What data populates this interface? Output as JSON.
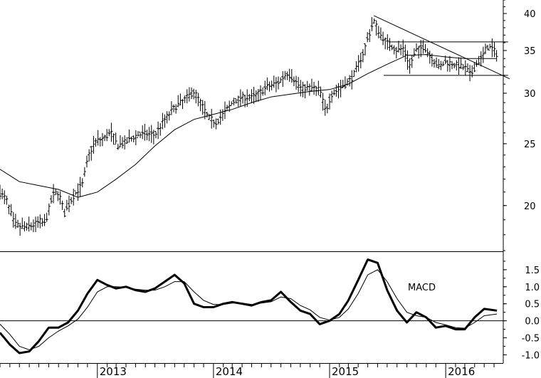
{
  "chart_data": [
    {
      "type": "ohlc",
      "title": "",
      "y_scale": "log",
      "ylim": [
        17,
        42
      ],
      "y_ticks": [
        {
          "value": 20,
          "label": "20"
        },
        {
          "value": 25,
          "label": "25"
        },
        {
          "value": 30,
          "label": "30"
        },
        {
          "value": 35,
          "label": "35"
        },
        {
          "value": 40,
          "label": "40"
        }
      ],
      "x_axis": {
        "start": "2012-03-01",
        "end": "2016-06-30",
        "year_labels": [
          {
            "date": "2013-01-01",
            "label": "2013"
          },
          {
            "date": "2014-01-01",
            "label": "2014"
          },
          {
            "date": "2015-01-01",
            "label": "2015"
          },
          {
            "date": "2016-01-01",
            "label": "2016"
          }
        ]
      },
      "price_path": [
        [
          "2012-03-01",
          20.9
        ],
        [
          "2012-03-20",
          20.5
        ],
        [
          "2012-04-15",
          18.7
        ],
        [
          "2012-05-10",
          18.5
        ],
        [
          "2012-06-10",
          18.6
        ],
        [
          "2012-07-05",
          18.9
        ],
        [
          "2012-07-20",
          18.7
        ],
        [
          "2012-08-15",
          20.8
        ],
        [
          "2012-09-01",
          21.0
        ],
        [
          "2012-09-20",
          19.4
        ],
        [
          "2012-10-15",
          20.6
        ],
        [
          "2012-11-15",
          21.6
        ],
        [
          "2012-12-05",
          24.0
        ],
        [
          "2012-12-25",
          25.2
        ],
        [
          "2013-01-20",
          25.5
        ],
        [
          "2013-02-15",
          26.0
        ],
        [
          "2013-03-05",
          24.8
        ],
        [
          "2013-04-05",
          25.2
        ],
        [
          "2013-05-05",
          25.8
        ],
        [
          "2013-06-01",
          25.9
        ],
        [
          "2013-07-01",
          25.8
        ],
        [
          "2013-08-01",
          27.3
        ],
        [
          "2013-09-01",
          28.5
        ],
        [
          "2013-10-01",
          29.3
        ],
        [
          "2013-11-01",
          30.2
        ],
        [
          "2013-11-25",
          28.8
        ],
        [
          "2013-12-15",
          27.5
        ],
        [
          "2014-01-10",
          27.0
        ],
        [
          "2014-02-05",
          28.0
        ],
        [
          "2014-03-01",
          29.0
        ],
        [
          "2014-04-01",
          29.6
        ],
        [
          "2014-05-01",
          29.5
        ],
        [
          "2014-06-01",
          30.2
        ],
        [
          "2014-06-25",
          30.8
        ],
        [
          "2014-07-25",
          31.2
        ],
        [
          "2014-08-20",
          32.3
        ],
        [
          "2014-09-10",
          31.6
        ],
        [
          "2014-10-01",
          30.6
        ],
        [
          "2014-11-01",
          30.6
        ],
        [
          "2014-12-01",
          30.4
        ],
        [
          "2014-12-20",
          28.0
        ],
        [
          "2015-01-05",
          29.8
        ],
        [
          "2015-02-01",
          30.5
        ],
        [
          "2015-02-20",
          31.0
        ],
        [
          "2015-03-15",
          31.8
        ],
        [
          "2015-04-15",
          34.5
        ],
        [
          "2015-05-05",
          37.0
        ],
        [
          "2015-05-20",
          39.0
        ],
        [
          "2015-06-10",
          37.0
        ],
        [
          "2015-07-01",
          36.0
        ],
        [
          "2015-08-01",
          35.0
        ],
        [
          "2015-08-20",
          35.3
        ],
        [
          "2015-09-10",
          33.2
        ],
        [
          "2015-10-01",
          35.0
        ],
        [
          "2015-10-25",
          35.5
        ],
        [
          "2015-11-10",
          34.5
        ],
        [
          "2015-12-10",
          33.0
        ],
        [
          "2016-01-05",
          33.6
        ],
        [
          "2016-02-05",
          33.2
        ],
        [
          "2016-03-05",
          32.8
        ],
        [
          "2016-03-20",
          32.0
        ],
        [
          "2016-04-05",
          33.2
        ],
        [
          "2016-04-25",
          34.2
        ],
        [
          "2016-05-10",
          35.5
        ],
        [
          "2016-05-25",
          35.3
        ],
        [
          "2016-06-10",
          34.5
        ]
      ],
      "moving_average": [
        [
          "2012-03-01",
          22.8
        ],
        [
          "2012-05-01",
          21.8
        ],
        [
          "2012-07-01",
          21.5
        ],
        [
          "2012-09-01",
          21.2
        ],
        [
          "2012-11-01",
          20.6
        ],
        [
          "2013-01-01",
          21.0
        ],
        [
          "2013-03-01",
          22.0
        ],
        [
          "2013-05-01",
          23.2
        ],
        [
          "2013-07-01",
          24.8
        ],
        [
          "2013-09-01",
          26.3
        ],
        [
          "2013-11-01",
          27.3
        ],
        [
          "2014-01-01",
          27.8
        ],
        [
          "2014-03-01",
          28.3
        ],
        [
          "2014-05-01",
          29.0
        ],
        [
          "2014-07-01",
          29.6
        ],
        [
          "2014-09-01",
          29.9
        ],
        [
          "2014-11-01",
          30.2
        ],
        [
          "2015-01-01",
          30.4
        ],
        [
          "2015-03-01",
          31.0
        ],
        [
          "2015-05-01",
          32.2
        ],
        [
          "2015-07-01",
          33.3
        ],
        [
          "2015-09-01",
          34.4
        ],
        [
          "2015-11-01",
          34.5
        ],
        [
          "2016-01-01",
          34.2
        ],
        [
          "2016-03-01",
          34.0
        ],
        [
          "2016-05-01",
          34.0
        ],
        [
          "2016-06-10",
          34.0
        ]
      ],
      "trendlines": [
        {
          "from": [
            "2015-05-20",
            39.7
          ],
          "to": [
            "2016-07-20",
            31.6
          ]
        },
        {
          "from": [
            "2015-07-05",
            36.1
          ],
          "to": [
            "2016-07-15",
            36.1
          ]
        },
        {
          "from": [
            "2015-06-20",
            32.0
          ],
          "to": [
            "2016-07-15",
            32.0
          ]
        }
      ]
    },
    {
      "type": "line",
      "title": "MACD",
      "ylim": [
        -1.2,
        2.0
      ],
      "y_ticks": [
        {
          "value": 1.5,
          "label": "1.5"
        },
        {
          "value": 1.0,
          "label": "1.0"
        },
        {
          "value": 0.5,
          "label": "0.5"
        },
        {
          "value": 0.0,
          "label": "0.0"
        },
        {
          "value": -0.5,
          "label": "-0.5"
        },
        {
          "value": -1.0,
          "label": "-1.0"
        }
      ],
      "zero_line": 0,
      "series": [
        {
          "role": "macd",
          "points": [
            [
              "2012-03-01",
              -0.35
            ],
            [
              "2012-04-01",
              -0.7
            ],
            [
              "2012-05-01",
              -0.95
            ],
            [
              "2012-06-01",
              -0.9
            ],
            [
              "2012-07-01",
              -0.6
            ],
            [
              "2012-08-01",
              -0.2
            ],
            [
              "2012-09-01",
              -0.2
            ],
            [
              "2012-10-01",
              -0.05
            ],
            [
              "2012-11-01",
              0.3
            ],
            [
              "2012-12-01",
              0.8
            ],
            [
              "2013-01-01",
              1.2
            ],
            [
              "2013-02-01",
              1.05
            ],
            [
              "2013-03-01",
              0.95
            ],
            [
              "2013-04-01",
              1.0
            ],
            [
              "2013-05-01",
              0.9
            ],
            [
              "2013-06-01",
              0.85
            ],
            [
              "2013-07-01",
              0.95
            ],
            [
              "2013-08-01",
              1.15
            ],
            [
              "2013-09-01",
              1.35
            ],
            [
              "2013-10-01",
              1.1
            ],
            [
              "2013-11-01",
              0.5
            ],
            [
              "2013-12-01",
              0.4
            ],
            [
              "2014-01-01",
              0.4
            ],
            [
              "2014-02-01",
              0.5
            ],
            [
              "2014-03-01",
              0.55
            ],
            [
              "2014-04-01",
              0.5
            ],
            [
              "2014-05-01",
              0.45
            ],
            [
              "2014-06-01",
              0.55
            ],
            [
              "2014-07-01",
              0.6
            ],
            [
              "2014-08-01",
              0.85
            ],
            [
              "2014-09-01",
              0.55
            ],
            [
              "2014-10-01",
              0.3
            ],
            [
              "2014-11-01",
              0.2
            ],
            [
              "2014-12-01",
              -0.1
            ],
            [
              "2015-01-01",
              0.0
            ],
            [
              "2015-02-01",
              0.2
            ],
            [
              "2015-03-01",
              0.6
            ],
            [
              "2015-04-01",
              1.2
            ],
            [
              "2015-05-01",
              1.8
            ],
            [
              "2015-06-01",
              1.7
            ],
            [
              "2015-07-01",
              0.9
            ],
            [
              "2015-08-01",
              0.3
            ],
            [
              "2015-09-01",
              -0.05
            ],
            [
              "2015-10-01",
              0.25
            ],
            [
              "2015-11-01",
              0.1
            ],
            [
              "2015-12-01",
              -0.2
            ],
            [
              "2016-01-01",
              -0.15
            ],
            [
              "2016-02-01",
              -0.25
            ],
            [
              "2016-03-01",
              -0.25
            ],
            [
              "2016-04-01",
              0.1
            ],
            [
              "2016-05-01",
              0.35
            ],
            [
              "2016-06-10",
              0.3
            ]
          ]
        },
        {
          "role": "signal",
          "points": [
            [
              "2012-03-01",
              -0.1
            ],
            [
              "2012-04-01",
              -0.4
            ],
            [
              "2012-05-01",
              -0.75
            ],
            [
              "2012-06-01",
              -0.85
            ],
            [
              "2012-07-01",
              -0.75
            ],
            [
              "2012-08-01",
              -0.5
            ],
            [
              "2012-09-01",
              -0.3
            ],
            [
              "2012-10-01",
              -0.15
            ],
            [
              "2012-11-01",
              0.05
            ],
            [
              "2012-12-01",
              0.4
            ],
            [
              "2013-01-01",
              0.85
            ],
            [
              "2013-02-01",
              1.0
            ],
            [
              "2013-03-01",
              1.0
            ],
            [
              "2013-04-01",
              0.98
            ],
            [
              "2013-05-01",
              0.93
            ],
            [
              "2013-06-01",
              0.9
            ],
            [
              "2013-07-01",
              0.9
            ],
            [
              "2013-08-01",
              1.0
            ],
            [
              "2013-09-01",
              1.15
            ],
            [
              "2013-10-01",
              1.15
            ],
            [
              "2013-11-01",
              0.85
            ],
            [
              "2013-12-01",
              0.6
            ],
            [
              "2014-01-01",
              0.48
            ],
            [
              "2014-02-01",
              0.48
            ],
            [
              "2014-03-01",
              0.52
            ],
            [
              "2014-04-01",
              0.52
            ],
            [
              "2014-05-01",
              0.48
            ],
            [
              "2014-06-01",
              0.52
            ],
            [
              "2014-07-01",
              0.56
            ],
            [
              "2014-08-01",
              0.7
            ],
            [
              "2014-09-01",
              0.65
            ],
            [
              "2014-10-01",
              0.45
            ],
            [
              "2014-11-01",
              0.32
            ],
            [
              "2014-12-01",
              0.1
            ],
            [
              "2015-01-01",
              0.02
            ],
            [
              "2015-02-01",
              0.1
            ],
            [
              "2015-03-01",
              0.35
            ],
            [
              "2015-04-01",
              0.8
            ],
            [
              "2015-05-01",
              1.35
            ],
            [
              "2015-06-01",
              1.5
            ],
            [
              "2015-07-01",
              1.15
            ],
            [
              "2015-08-01",
              0.65
            ],
            [
              "2015-09-01",
              0.25
            ],
            [
              "2015-10-01",
              0.15
            ],
            [
              "2015-11-01",
              0.1
            ],
            [
              "2015-12-01",
              -0.05
            ],
            [
              "2016-01-01",
              -0.12
            ],
            [
              "2016-02-01",
              -0.2
            ],
            [
              "2016-03-01",
              -0.22
            ],
            [
              "2016-04-01",
              -0.05
            ],
            [
              "2016-05-01",
              0.15
            ],
            [
              "2016-06-10",
              0.2
            ]
          ]
        }
      ]
    }
  ]
}
